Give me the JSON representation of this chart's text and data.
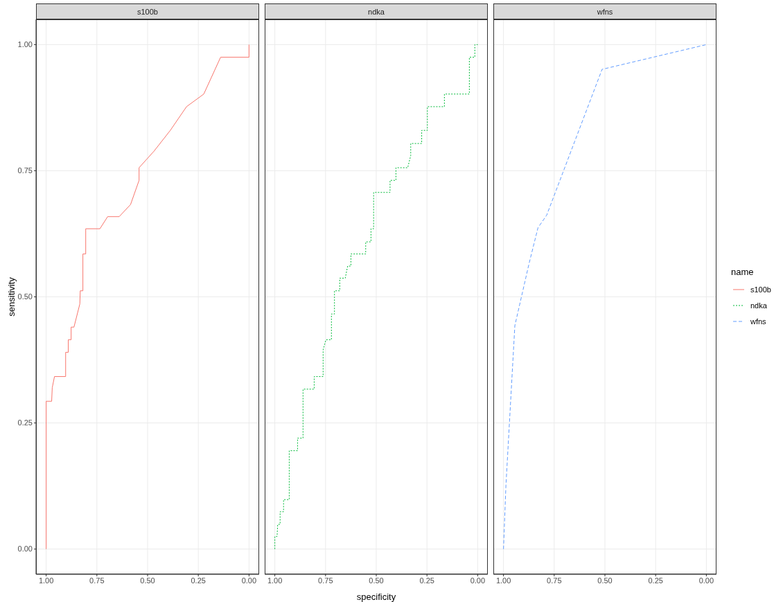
{
  "chart_data": [
    {
      "type": "line",
      "title": "s100b",
      "ylabel": "sensitivity",
      "xlim": [
        1.05,
        -0.05
      ],
      "ylim": [
        -0.05,
        1.05
      ],
      "xticks": [
        {
          "value": 1,
          "label": "1.00"
        },
        {
          "value": 0.75,
          "label": "0.75"
        },
        {
          "value": 0.5,
          "label": "0.50"
        },
        {
          "value": 0.25,
          "label": "0.25"
        },
        {
          "value": 0,
          "label": "0.00"
        }
      ],
      "yticks": [
        {
          "value": 0,
          "label": "0.00"
        },
        {
          "value": 0.25,
          "label": "0.25"
        },
        {
          "value": 0.5,
          "label": "0.50"
        },
        {
          "value": 0.75,
          "label": "0.75"
        },
        {
          "value": 1,
          "label": "1.00"
        }
      ],
      "grid": true,
      "line_style": "solid",
      "series": [
        {
          "name": "s100b",
          "color": "#f8766d",
          "x": [
            1,
            1,
            0.973,
            0.97,
            0.959,
            0.904,
            0.904,
            0.891,
            0.891,
            0.877,
            0.877,
            0.863,
            0.834,
            0.832,
            0.819,
            0.819,
            0.805,
            0.805,
            0.735,
            0.697,
            0.64,
            0.584,
            0.542,
            0.542,
            0.468,
            0.388,
            0.308,
            0.223,
            0.14,
            0,
            0
          ],
          "values": [
            0,
            0.293,
            0.293,
            0.32,
            0.342,
            0.342,
            0.39,
            0.39,
            0.415,
            0.415,
            0.44,
            0.44,
            0.486,
            0.512,
            0.512,
            0.585,
            0.585,
            0.635,
            0.635,
            0.659,
            0.659,
            0.683,
            0.731,
            0.756,
            0.789,
            0.83,
            0.877,
            0.902,
            0.975,
            0.975,
            1
          ]
        }
      ]
    },
    {
      "type": "line",
      "title": "ndka",
      "xlabel": "specificity",
      "xlim": [
        1.05,
        -0.05
      ],
      "ylim": [
        -0.05,
        1.05
      ],
      "xticks": [
        {
          "value": 1,
          "label": "1.00"
        },
        {
          "value": 0.75,
          "label": "0.75"
        },
        {
          "value": 0.5,
          "label": "0.50"
        },
        {
          "value": 0.25,
          "label": "0.25"
        },
        {
          "value": 0,
          "label": "0.00"
        }
      ],
      "yticks": [
        0,
        0.25,
        0.5,
        0.75,
        1
      ],
      "tick_labels": "x",
      "grid": true,
      "line_style": "dotted",
      "series": [
        {
          "name": "ndka",
          "color": "#00ba38",
          "x": [
            1,
            1,
            0.989,
            0.986,
            0.974,
            0.974,
            0.957,
            0.957,
            0.929,
            0.929,
            0.888,
            0.888,
            0.861,
            0.861,
            0.806,
            0.806,
            0.762,
            0.762,
            0.748,
            0.721,
            0.721,
            0.706,
            0.706,
            0.68,
            0.68,
            0.653,
            0.641,
            0.625,
            0.625,
            0.552,
            0.552,
            0.526,
            0.526,
            0.513,
            0.513,
            0.432,
            0.432,
            0.403,
            0.403,
            0.345,
            0.33,
            0.33,
            0.276,
            0.276,
            0.248,
            0.248,
            0.164,
            0.164,
            0.041,
            0.041,
            0.014,
            0.014,
            0
          ],
          "values": [
            0,
            0.025,
            0.025,
            0.049,
            0.049,
            0.074,
            0.074,
            0.098,
            0.098,
            0.195,
            0.195,
            0.22,
            0.22,
            0.317,
            0.317,
            0.342,
            0.342,
            0.395,
            0.415,
            0.415,
            0.466,
            0.466,
            0.512,
            0.512,
            0.537,
            0.537,
            0.561,
            0.561,
            0.585,
            0.585,
            0.609,
            0.609,
            0.635,
            0.635,
            0.707,
            0.707,
            0.731,
            0.731,
            0.756,
            0.756,
            0.78,
            0.804,
            0.804,
            0.83,
            0.83,
            0.877,
            0.877,
            0.902,
            0.902,
            0.975,
            0.975,
            1,
            1
          ]
        }
      ]
    },
    {
      "type": "line",
      "title": "wfns",
      "xlim": [
        1.05,
        -0.05
      ],
      "ylim": [
        -0.05,
        1.05
      ],
      "xticks": [
        {
          "value": 1,
          "label": "1.00"
        },
        {
          "value": 0.75,
          "label": "0.75"
        },
        {
          "value": 0.5,
          "label": "0.50"
        },
        {
          "value": 0.25,
          "label": "0.25"
        },
        {
          "value": 0,
          "label": "0.00"
        }
      ],
      "yticks": [
        0,
        0.25,
        0.5,
        0.75,
        1
      ],
      "tick_labels": "x",
      "grid": true,
      "line_style": "dashed",
      "legend": "right",
      "legend_title": "name",
      "series": [
        {
          "name": "wfns",
          "color": "#619cff",
          "x": [
            1,
            0.988,
            0.944,
            0.874,
            0.83,
            0.787,
            0.514,
            0
          ],
          "values": [
            0,
            0.126,
            0.443,
            0.566,
            0.637,
            0.662,
            0.951,
            1
          ]
        }
      ]
    }
  ]
}
